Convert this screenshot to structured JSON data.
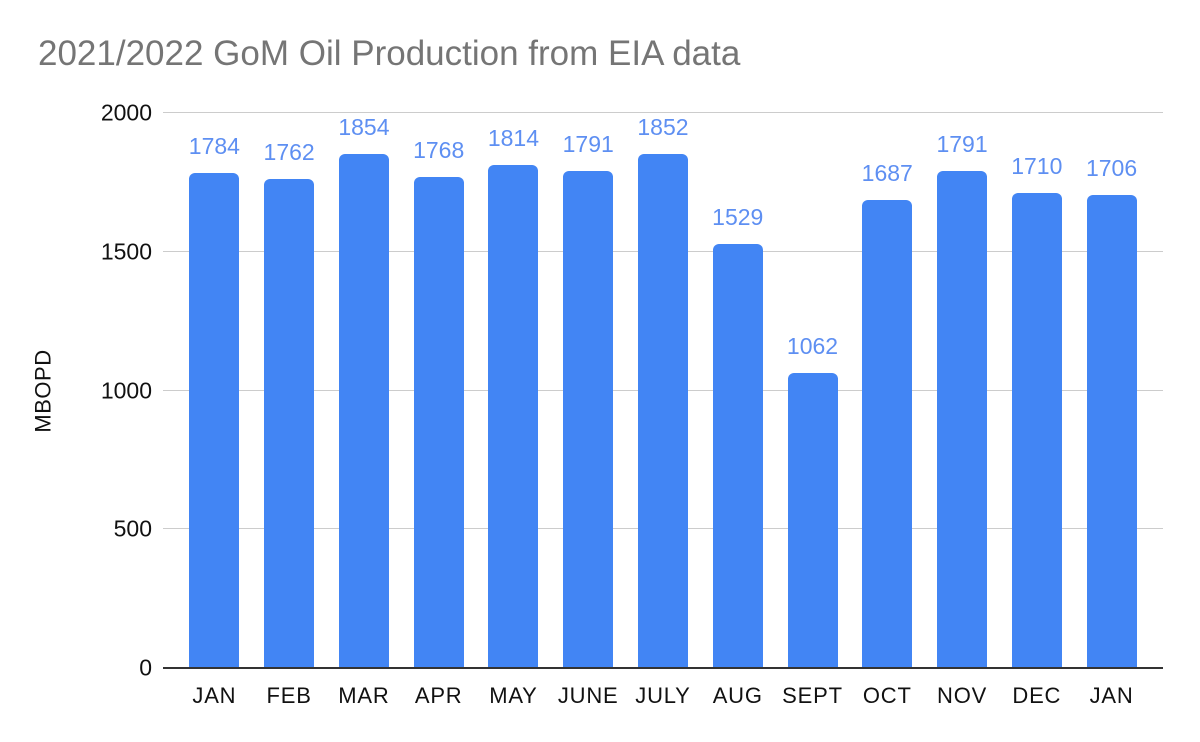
{
  "title": "2021/2022 GoM Oil Production from EIA data",
  "chart_data": {
    "type": "bar",
    "title": "2021/2022 GoM Oil Production from EIA data",
    "categories": [
      "JAN",
      "FEB",
      "MAR",
      "APR",
      "MAY",
      "JUNE",
      "JULY",
      "AUG",
      "SEPT",
      "OCT",
      "NOV",
      "DEC",
      "JAN"
    ],
    "values": [
      1784,
      1762,
      1854,
      1768,
      1814,
      1791,
      1852,
      1529,
      1062,
      1687,
      1791,
      1710,
      1706
    ],
    "xlabel": "",
    "ylabel": "MBOPD",
    "ylim": [
      0,
      2000
    ],
    "yticks": [
      0,
      500,
      1000,
      1500,
      2000
    ],
    "grid": true,
    "legend": false,
    "data_labels_shown": true,
    "colors": {
      "bar": "#4285f4",
      "data_label": "#5e8ff2",
      "title": "#757575",
      "axis_text": "#111111",
      "gridline": "#cccccc",
      "baseline": "#333333",
      "background": "#ffffff"
    }
  }
}
